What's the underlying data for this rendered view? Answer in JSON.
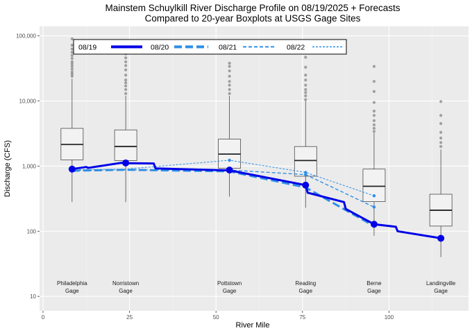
{
  "chart_data": {
    "type": "boxplot+line",
    "title": "Mainstem Schuylkill River Discharge Profile on 08/19/2025 + Forecasts",
    "subtitle": "Compared to 20-year Boxplots at USGS Gage Sites",
    "xlabel": "River Mile",
    "ylabel": "Discharge (CFS)",
    "xlim": [
      -1,
      123
    ],
    "ylim": [
      6,
      140000
    ],
    "yscale": "log",
    "x_ticks": [
      0,
      25,
      50,
      75,
      100
    ],
    "y_ticks": [
      {
        "value": 10,
        "label": "10"
      },
      {
        "value": 100,
        "label": "100"
      },
      {
        "value": 1000,
        "label": "1,000"
      },
      {
        "value": 10000,
        "label": "10,000"
      },
      {
        "value": 100000,
        "label": "100,000"
      }
    ],
    "grid": true,
    "legend_position": "top",
    "sites": [
      {
        "name": "Philadelphia",
        "name2": "Gage",
        "mile": 8.4
      },
      {
        "name": "Norristown",
        "name2": "Gage",
        "mile": 23.9
      },
      {
        "name": "Pottstown",
        "name2": "Gage",
        "mile": 53.9
      },
      {
        "name": "Reading",
        "name2": "Gage",
        "mile": 75.9
      },
      {
        "name": "Berne",
        "name2": "Gage",
        "mile": 95.7
      },
      {
        "name": "Landingville",
        "name2": "Gage",
        "mile": 115
      }
    ],
    "boxplots": [
      {
        "x": 8.4,
        "whisker_low": 280,
        "q1": 1250,
        "median": 2150,
        "q3": 3800,
        "whisker_high": 22000,
        "outliers": [
          24000,
          26000,
          28000,
          31000,
          34000,
          37000,
          40000,
          45000,
          50000,
          56000,
          63000,
          72000,
          90000
        ]
      },
      {
        "x": 23.9,
        "whisker_low": 280,
        "q1": 1220,
        "median": 2000,
        "q3": 3600,
        "whisker_high": 12000,
        "outliers": [
          13000,
          15000,
          17000,
          19000,
          21000,
          25000,
          30000,
          35000,
          40000,
          46000,
          53000,
          60000,
          70000
        ]
      },
      {
        "x": 53.9,
        "whisker_low": 340,
        "q1": 930,
        "median": 1530,
        "q3": 2600,
        "whisker_high": 12000,
        "outliers": [
          13000,
          15000,
          17500,
          20000,
          24000,
          29000,
          34000,
          38000
        ]
      },
      {
        "x": 75.9,
        "whisker_low": 230,
        "q1": 700,
        "median": 1220,
        "q3": 2000,
        "whisker_high": 10000,
        "outliers": [
          10500,
          12000,
          13500,
          15000,
          17500,
          21000,
          25000,
          33000,
          47000
        ]
      },
      {
        "x": 95.7,
        "whisker_low": 85,
        "q1": 285,
        "median": 490,
        "q3": 900,
        "whisker_high": 3200,
        "outliers": [
          3400,
          3800,
          4300,
          5000,
          6000,
          7000,
          9500,
          14000,
          20000,
          34000
        ]
      },
      {
        "x": 115,
        "whisker_low": 40,
        "q1": 120,
        "median": 210,
        "q3": 370,
        "whisker_high": 1800,
        "outliers": [
          2000,
          2300,
          2700,
          3300,
          4500,
          6000,
          9800
        ]
      }
    ],
    "series": [
      {
        "name": "08/19",
        "color": "#0000e6",
        "dash": "solid",
        "points": [
          [
            8.4,
            900
          ],
          [
            12.5,
            970
          ],
          [
            13,
            940
          ],
          [
            22.5,
            1120
          ],
          [
            23.9,
            1110
          ],
          [
            32,
            1100
          ],
          [
            32.5,
            920
          ],
          [
            53.9,
            860
          ],
          [
            75.9,
            510
          ],
          [
            76.5,
            390
          ],
          [
            87,
            280
          ],
          [
            87.5,
            220
          ],
          [
            95.7,
            128
          ],
          [
            102,
            117
          ],
          [
            102.5,
            100
          ],
          [
            115,
            78
          ]
        ],
        "markers": [
          [
            8.4,
            900
          ],
          [
            23.9,
            1120
          ],
          [
            53.9,
            870
          ],
          [
            75.9,
            510
          ],
          [
            95.7,
            128
          ],
          [
            115,
            78
          ]
        ]
      },
      {
        "name": "08/20",
        "color": "#2e8ee6",
        "dash": "long",
        "points": [
          [
            8.4,
            850
          ],
          [
            23.9,
            880
          ],
          [
            53.9,
            830
          ],
          [
            75.9,
            470
          ],
          [
            95.7,
            120
          ]
        ],
        "markers": []
      },
      {
        "name": "08/21",
        "color": "#2e8ee6",
        "dash": "medium",
        "points": [
          [
            8.4,
            860
          ],
          [
            23.9,
            880
          ],
          [
            53.9,
            870
          ],
          [
            75.9,
            740
          ],
          [
            95.7,
            235
          ]
        ],
        "markers": [
          [
            75.9,
            740
          ],
          [
            95.7,
            235
          ]
        ]
      },
      {
        "name": "08/22",
        "color": "#2e8ee6",
        "dash": "short",
        "points": [
          [
            8.4,
            880
          ],
          [
            23.9,
            900
          ],
          [
            53.9,
            1230
          ],
          [
            75.9,
            800
          ],
          [
            95.7,
            350
          ]
        ],
        "markers": [
          [
            53.9,
            1230
          ],
          [
            75.9,
            800
          ],
          [
            95.7,
            350
          ]
        ]
      }
    ]
  }
}
